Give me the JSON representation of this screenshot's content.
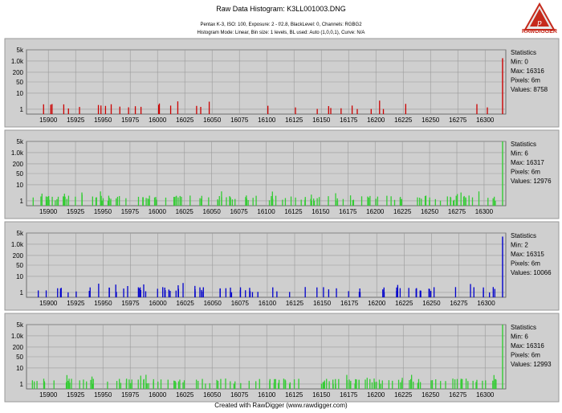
{
  "header": {
    "title": "Raw Data Histogram: K3LL001003.DNG",
    "line1": "Pentax K-3, ISO: 100, Exposure: 2 - f/2.8, BlackLevel: 0, Channels: RGBG2",
    "line2": "Histogram Mode: Linear, Bin size: 1 levels, BL used: Auto (1,0,0,1), Curve: N/A"
  },
  "logo": {
    "text": "RAWDIGGER",
    "icon": "rawdigger-logo-icon",
    "color": "#c62a1c"
  },
  "footer": {
    "text": "Created with RawDigger (www.rawdigger.com)"
  },
  "chart_data": [
    {
      "type": "bar",
      "channel_color": "#cc0000",
      "y_scale": "log",
      "ytick_labels": [
        "5k",
        "1.0k",
        "200",
        "50",
        "10",
        "1"
      ],
      "ytick_values": [
        5000,
        1000,
        200,
        50,
        10,
        1
      ],
      "xtick_labels": [
        "15900",
        "15925",
        "15950",
        "15975",
        "16000",
        "16025",
        "16050",
        "16075",
        "16100",
        "16125",
        "16150",
        "16175",
        "16200",
        "16225",
        "16250",
        "16275",
        "16300"
      ],
      "xlim": [
        15880,
        16316
      ],
      "spikes": [
        {
          "x": 16316,
          "y": 1500
        }
      ],
      "noise_seed": 11,
      "noise_count": 35,
      "stats": {
        "title": "Statistics",
        "min": "Min: 0",
        "max": "Max: 16316",
        "pixels": "Pixels: 6m",
        "values": "Values: 8758"
      }
    },
    {
      "type": "bar",
      "channel_color": "#33cc33",
      "y_scale": "log",
      "ytick_labels": [
        "5k",
        "1.0k",
        "200",
        "50",
        "10",
        "1"
      ],
      "ytick_values": [
        5000,
        1000,
        200,
        50,
        10,
        1
      ],
      "xtick_labels": [
        "15900",
        "15925",
        "15950",
        "15975",
        "16000",
        "16025",
        "16050",
        "16075",
        "16100",
        "16125",
        "16150",
        "16175",
        "16200",
        "16225",
        "16250",
        "16275",
        "16300"
      ],
      "xlim": [
        15880,
        16317
      ],
      "spikes": [
        {
          "x": 16317,
          "y": 5000
        }
      ],
      "noise_seed": 23,
      "noise_count": 150,
      "stats": {
        "title": "Statistics",
        "min": "Min: 6",
        "max": "Max: 16317",
        "pixels": "Pixels: 6m",
        "values": "Values: 12976"
      }
    },
    {
      "type": "bar",
      "channel_color": "#0000cc",
      "y_scale": "log",
      "ytick_labels": [
        "5k",
        "1.0k",
        "200",
        "50",
        "10",
        "1"
      ],
      "ytick_values": [
        5000,
        1000,
        200,
        50,
        10,
        1
      ],
      "xtick_labels": [
        "15900",
        "15925",
        "15950",
        "15975",
        "16000",
        "16025",
        "16050",
        "16075",
        "16100",
        "16125",
        "16150",
        "16175",
        "16200",
        "16225",
        "16250",
        "16275",
        "16300"
      ],
      "xlim": [
        15880,
        16315
      ],
      "spikes": [
        {
          "x": 16315,
          "y": 3000
        }
      ],
      "noise_seed": 37,
      "noise_count": 90,
      "stats": {
        "title": "Statistics",
        "min": "Min: 2",
        "max": "Max: 16315",
        "pixels": "Pixels: 6m",
        "values": "Values: 10066"
      }
    },
    {
      "type": "bar",
      "channel_color": "#33cc33",
      "y_scale": "log",
      "ytick_labels": [
        "5k",
        "1.0k",
        "200",
        "50",
        "10",
        "1"
      ],
      "ytick_values": [
        5000,
        1000,
        200,
        50,
        10,
        1
      ],
      "xtick_labels": [
        "15900",
        "15925",
        "15950",
        "15975",
        "16000",
        "16025",
        "16050",
        "16075",
        "16100",
        "16125",
        "16150",
        "16175",
        "16200",
        "16225",
        "16250",
        "16275",
        "16300"
      ],
      "xlim": [
        15880,
        16316
      ],
      "spikes": [
        {
          "x": 16316,
          "y": 5000
        }
      ],
      "noise_seed": 53,
      "noise_count": 150,
      "stats": {
        "title": "Statistics",
        "min": "Min: 6",
        "max": "Max: 16316",
        "pixels": "Pixels: 6m",
        "values": "Values: 12993"
      }
    }
  ]
}
